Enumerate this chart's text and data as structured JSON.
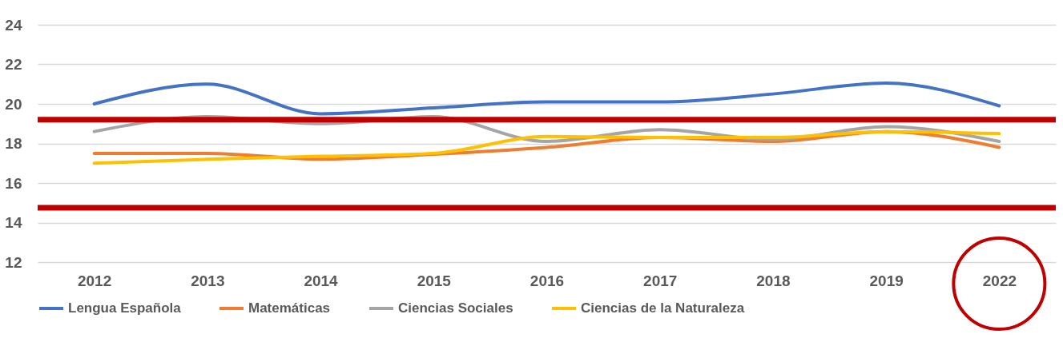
{
  "chart_data": {
    "type": "line",
    "categories": [
      "2012",
      "2013",
      "2014",
      "2015",
      "2016",
      "2017",
      "2018",
      "2019",
      "2022"
    ],
    "series": [
      {
        "name": "Lengua Española",
        "color": "#4472c4",
        "values": [
          20.0,
          21.0,
          19.5,
          19.8,
          20.1,
          20.1,
          20.5,
          21.05,
          19.9
        ]
      },
      {
        "name": "Matemáticas",
        "color": "#ed7d31",
        "values": [
          17.5,
          17.5,
          17.2,
          17.45,
          17.8,
          18.3,
          18.1,
          18.6,
          17.8
        ]
      },
      {
        "name": "Ciencias Sociales",
        "color": "#a5a5a5",
        "values": [
          18.6,
          19.35,
          19.0,
          19.35,
          18.1,
          18.7,
          18.2,
          18.85,
          18.1
        ]
      },
      {
        "name": "Ciencias de la Naturaleza",
        "color": "#ffc000",
        "values": [
          17.0,
          17.2,
          17.35,
          17.5,
          18.35,
          18.3,
          18.3,
          18.6,
          18.5
        ]
      }
    ],
    "ylim": [
      12,
      24
    ],
    "yticks": [
      12,
      14,
      16,
      18,
      20,
      22,
      24
    ],
    "ref_lines": [
      {
        "axis": "y",
        "value": 19.2,
        "color": "#c00000"
      },
      {
        "axis": "y",
        "value": 14.75,
        "color": "#c00000"
      }
    ],
    "grid": "y",
    "legend": "bottom",
    "marker": "none",
    "line_style": "solid"
  }
}
